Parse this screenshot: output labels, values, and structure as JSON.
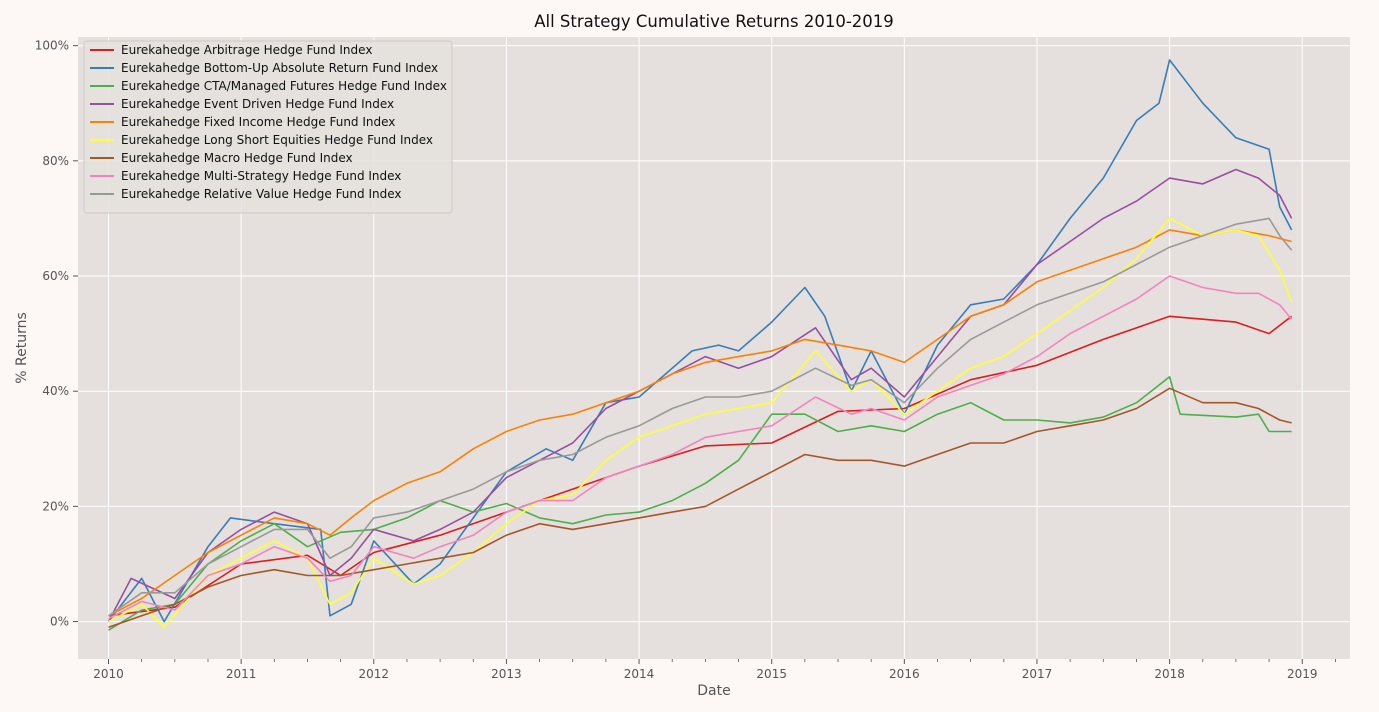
{
  "chart_data": {
    "type": "line",
    "title": "All Strategy Cumulative Returns 2010-2019",
    "xlabel": "Date",
    "ylabel": "% Returns",
    "xlim": [
      2009.77,
      2019.36
    ],
    "ylim": [
      -6.5,
      101.5
    ],
    "x_ticks": [
      2010,
      2011,
      2012,
      2013,
      2014,
      2015,
      2016,
      2017,
      2018,
      2019
    ],
    "x_tick_labels": [
      "2010",
      "2011",
      "2012",
      "2013",
      "2014",
      "2015",
      "2016",
      "2017",
      "2018",
      "2019"
    ],
    "y_ticks": [
      0,
      20,
      40,
      60,
      80,
      100
    ],
    "y_tick_labels": [
      "0%",
      "20%",
      "40%",
      "60%",
      "80%",
      "100%"
    ],
    "grid": true,
    "legend_position": "top-left",
    "background": "#e5e0dd",
    "series": [
      {
        "name": "Eurekahedge Arbitrage Hedge Fund Index",
        "color": "#e41a1c",
        "x": [
          2010,
          2010.5,
          2011,
          2011.5,
          2011.75,
          2012,
          2012.5,
          2013,
          2013.5,
          2014,
          2014.5,
          2015,
          2015.5,
          2016,
          2016.5,
          2017,
          2017.5,
          2018,
          2018.5,
          2018.75,
          2018.92
        ],
        "y": [
          1,
          2.5,
          10,
          11.5,
          8,
          12,
          15,
          19,
          23,
          27,
          30.5,
          31,
          36.5,
          37,
          42,
          44.5,
          49,
          53,
          52,
          50,
          53
        ]
      },
      {
        "name": "Eurekahedge Bottom-Up Absolute Return Fund Index",
        "color": "#377eb8",
        "x": [
          2010,
          2010.25,
          2010.42,
          2010.75,
          2010.92,
          2011.25,
          2011.6,
          2011.67,
          2011.83,
          2012,
          2012.3,
          2012.5,
          2012.75,
          2013,
          2013.3,
          2013.5,
          2013.75,
          2014,
          2014.4,
          2014.6,
          2014.75,
          2015,
          2015.25,
          2015.4,
          2015.6,
          2015.75,
          2016,
          2016.25,
          2016.5,
          2016.75,
          2017,
          2017.25,
          2017.5,
          2017.75,
          2017.92,
          2018,
          2018.25,
          2018.5,
          2018.75,
          2018.83,
          2018.92
        ],
        "y": [
          0,
          7.5,
          0,
          13,
          18,
          17,
          16,
          1,
          3,
          14,
          6.5,
          10,
          18,
          26,
          30,
          28,
          38,
          39,
          47,
          48,
          47,
          52,
          58,
          53,
          40,
          47,
          36,
          48,
          55,
          56,
          62,
          70,
          77,
          87,
          90,
          97.5,
          90,
          84,
          82,
          72,
          68
        ]
      },
      {
        "name": "Eurekahedge CTA/Managed Futures Hedge Fund Index",
        "color": "#4daf4a",
        "x": [
          2010,
          2010.25,
          2010.5,
          2010.75,
          2011,
          2011.25,
          2011.5,
          2011.75,
          2012,
          2012.25,
          2012.5,
          2012.75,
          2013,
          2013.25,
          2013.5,
          2013.75,
          2014,
          2014.25,
          2014.5,
          2014.75,
          2015,
          2015.25,
          2015.5,
          2015.75,
          2016,
          2016.25,
          2016.5,
          2016.75,
          2017,
          2017.25,
          2017.5,
          2017.75,
          2018,
          2018.08,
          2018.5,
          2018.67,
          2018.75,
          2018.92
        ],
        "y": [
          -1.5,
          2,
          3,
          10,
          14,
          17,
          13,
          15.5,
          16,
          18,
          21,
          19,
          20.5,
          18,
          17,
          18.5,
          19,
          21,
          24,
          28,
          36,
          36,
          33,
          34,
          33,
          36,
          38,
          35,
          35,
          34.5,
          35.5,
          38,
          42.5,
          36,
          35.5,
          36,
          33,
          33
        ]
      },
      {
        "name": "Eurekahedge Event Driven Hedge Fund Index",
        "color": "#984ea3",
        "x": [
          2010,
          2010.17,
          2010.5,
          2010.75,
          2011,
          2011.25,
          2011.5,
          2011.67,
          2011.83,
          2012,
          2012.3,
          2012.5,
          2012.75,
          2013,
          2013.25,
          2013.5,
          2013.75,
          2014,
          2014.25,
          2014.5,
          2014.75,
          2015,
          2015.33,
          2015.6,
          2015.75,
          2016,
          2016.25,
          2016.5,
          2016.75,
          2017,
          2017.25,
          2017.5,
          2017.75,
          2018,
          2018.25,
          2018.5,
          2018.67,
          2018.83,
          2018.92
        ],
        "y": [
          0,
          7.5,
          4,
          12,
          16,
          19,
          17,
          8,
          11,
          16,
          14,
          16,
          19,
          25,
          28,
          31,
          37,
          40,
          43,
          46,
          44,
          46,
          51,
          42,
          44,
          39,
          46,
          53,
          55,
          62,
          66,
          70,
          73,
          77,
          76,
          78.5,
          77,
          74,
          70
        ]
      },
      {
        "name": "Eurekahedge Fixed Income Hedge Fund Index",
        "color": "#ff7f00",
        "x": [
          2010,
          2010.25,
          2010.5,
          2010.75,
          2011,
          2011.25,
          2011.5,
          2011.67,
          2011.83,
          2012,
          2012.25,
          2012.5,
          2012.75,
          2013,
          2013.25,
          2013.5,
          2013.75,
          2014,
          2014.25,
          2014.5,
          2014.75,
          2015,
          2015.25,
          2015.5,
          2015.75,
          2016,
          2016.25,
          2016.5,
          2016.75,
          2017,
          2017.25,
          2017.5,
          2017.75,
          2018,
          2018.25,
          2018.5,
          2018.75,
          2018.92
        ],
        "y": [
          1,
          4,
          8,
          12,
          15,
          18,
          17,
          15,
          18,
          21,
          24,
          26,
          30,
          33,
          35,
          36,
          38,
          40,
          43,
          45,
          46,
          47,
          49,
          48,
          47,
          45,
          49,
          53,
          55,
          59,
          61,
          63,
          65,
          68,
          67,
          68,
          67,
          66
        ]
      },
      {
        "name": "Eurekahedge Long Short Equities Hedge Fund Index",
        "color": "#ffff33",
        "x": [
          2010,
          2010.25,
          2010.42,
          2010.75,
          2011,
          2011.25,
          2011.5,
          2011.67,
          2011.83,
          2012,
          2012.3,
          2012.5,
          2012.75,
          2013,
          2013.25,
          2013.5,
          2013.75,
          2014,
          2014.25,
          2014.5,
          2014.75,
          2015,
          2015.33,
          2015.6,
          2015.75,
          2016,
          2016.25,
          2016.5,
          2016.75,
          2017,
          2017.25,
          2017.5,
          2017.75,
          2018,
          2018.25,
          2018.5,
          2018.67,
          2018.83,
          2018.92
        ],
        "y": [
          0,
          3,
          -1,
          8,
          11,
          14,
          11,
          3,
          5,
          11,
          6.5,
          8,
          12,
          17,
          21,
          22,
          28,
          32,
          34,
          36,
          37,
          38,
          47,
          40,
          42,
          36,
          40,
          44,
          46,
          50,
          54,
          58,
          63,
          70,
          67,
          68,
          67,
          61,
          55.5
        ]
      },
      {
        "name": "Eurekahedge Macro Hedge Fund Index",
        "color": "#a65628",
        "x": [
          2010,
          2010.25,
          2010.5,
          2010.75,
          2011,
          2011.25,
          2011.5,
          2011.75,
          2012,
          2012.25,
          2012.5,
          2012.75,
          2013,
          2013.25,
          2013.5,
          2013.75,
          2014,
          2014.25,
          2014.5,
          2014.75,
          2015,
          2015.25,
          2015.5,
          2015.75,
          2016,
          2016.25,
          2016.5,
          2016.75,
          2017,
          2017.25,
          2017.5,
          2017.75,
          2018,
          2018.25,
          2018.5,
          2018.67,
          2018.83,
          2018.92
        ],
        "y": [
          -1,
          1,
          3,
          6,
          8,
          9,
          8,
          8,
          9,
          10,
          11,
          12,
          15,
          17,
          16,
          17,
          18,
          19,
          20,
          23,
          26,
          29,
          28,
          28,
          27,
          29,
          31,
          31,
          33,
          34,
          35,
          37,
          40.5,
          38,
          38,
          37,
          35,
          34.5
        ]
      },
      {
        "name": "Eurekahedge Multi-Strategy Hedge Fund Index",
        "color": "#f781bf",
        "x": [
          2010,
          2010.25,
          2010.5,
          2010.75,
          2011,
          2011.25,
          2011.5,
          2011.67,
          2011.83,
          2012,
          2012.3,
          2012.5,
          2012.75,
          2013,
          2013.25,
          2013.5,
          2013.75,
          2014,
          2014.25,
          2014.5,
          2014.75,
          2015,
          2015.33,
          2015.6,
          2015.75,
          2016,
          2016.25,
          2016.5,
          2016.75,
          2017,
          2017.25,
          2017.5,
          2017.75,
          2018,
          2018.25,
          2018.5,
          2018.67,
          2018.83,
          2018.92
        ],
        "y": [
          0.5,
          3.5,
          2,
          8,
          10,
          13,
          11,
          7,
          8,
          13,
          11,
          13,
          15,
          19,
          21,
          21,
          25,
          27,
          29,
          32,
          33,
          34,
          39,
          36,
          37,
          35,
          39,
          41,
          43,
          46,
          50,
          53,
          56,
          60,
          58,
          57,
          57,
          55,
          52.5
        ]
      },
      {
        "name": "Eurekahedge Relative Value Hedge Fund Index",
        "color": "#999999",
        "x": [
          2010,
          2010.25,
          2010.5,
          2010.75,
          2011,
          2011.25,
          2011.5,
          2011.67,
          2011.83,
          2012,
          2012.25,
          2012.5,
          2012.75,
          2013,
          2013.25,
          2013.5,
          2013.75,
          2014,
          2014.25,
          2014.5,
          2014.75,
          2015,
          2015.33,
          2015.6,
          2015.75,
          2016,
          2016.25,
          2016.5,
          2016.75,
          2017,
          2017.25,
          2017.5,
          2017.75,
          2018,
          2018.25,
          2018.5,
          2018.75,
          2018.83,
          2018.92
        ],
        "y": [
          1,
          5,
          5,
          10,
          13,
          16,
          16,
          11,
          13,
          18,
          19,
          21,
          23,
          26,
          28,
          29,
          32,
          34,
          37,
          39,
          39,
          40,
          44,
          41,
          42,
          38,
          44,
          49,
          52,
          55,
          57,
          59,
          62,
          65,
          67,
          69,
          70,
          67,
          64.5
        ]
      }
    ]
  }
}
